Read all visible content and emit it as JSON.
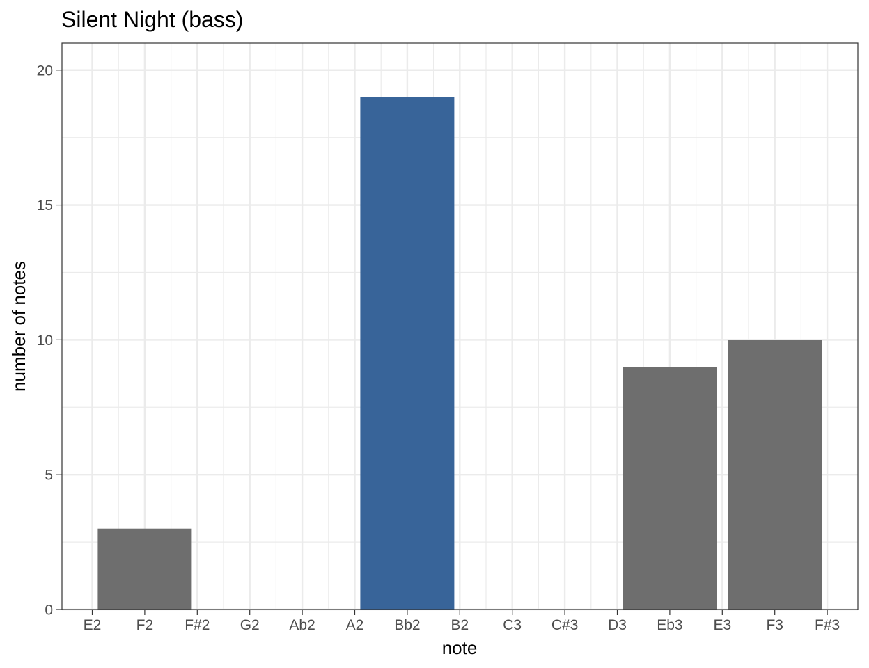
{
  "chart_data": {
    "type": "bar",
    "title": "Silent Night (bass)",
    "xlabel": "note",
    "ylabel": "number of notes",
    "categories": [
      "E2",
      "F2",
      "F#2",
      "G2",
      "Ab2",
      "A2",
      "Bb2",
      "B2",
      "C3",
      "C#3",
      "D3",
      "Eb3",
      "E3",
      "F3",
      "F#3"
    ],
    "bars": [
      {
        "note": "F2",
        "value": 3,
        "color": "#6e6e6e"
      },
      {
        "note": "Bb2",
        "value": 19,
        "color": "#386499"
      },
      {
        "note": "Eb3",
        "value": 9,
        "color": "#6e6e6e"
      },
      {
        "note": "F3",
        "value": 10,
        "color": "#6e6e6e"
      }
    ],
    "ylim": [
      0,
      21
    ],
    "yticks": [
      0,
      5,
      10,
      15,
      20
    ],
    "grid": true,
    "colors": {
      "highlight": "#386499",
      "default": "#6e6e6e",
      "grid": "#ebebeb",
      "panel_border": "#333333"
    }
  }
}
